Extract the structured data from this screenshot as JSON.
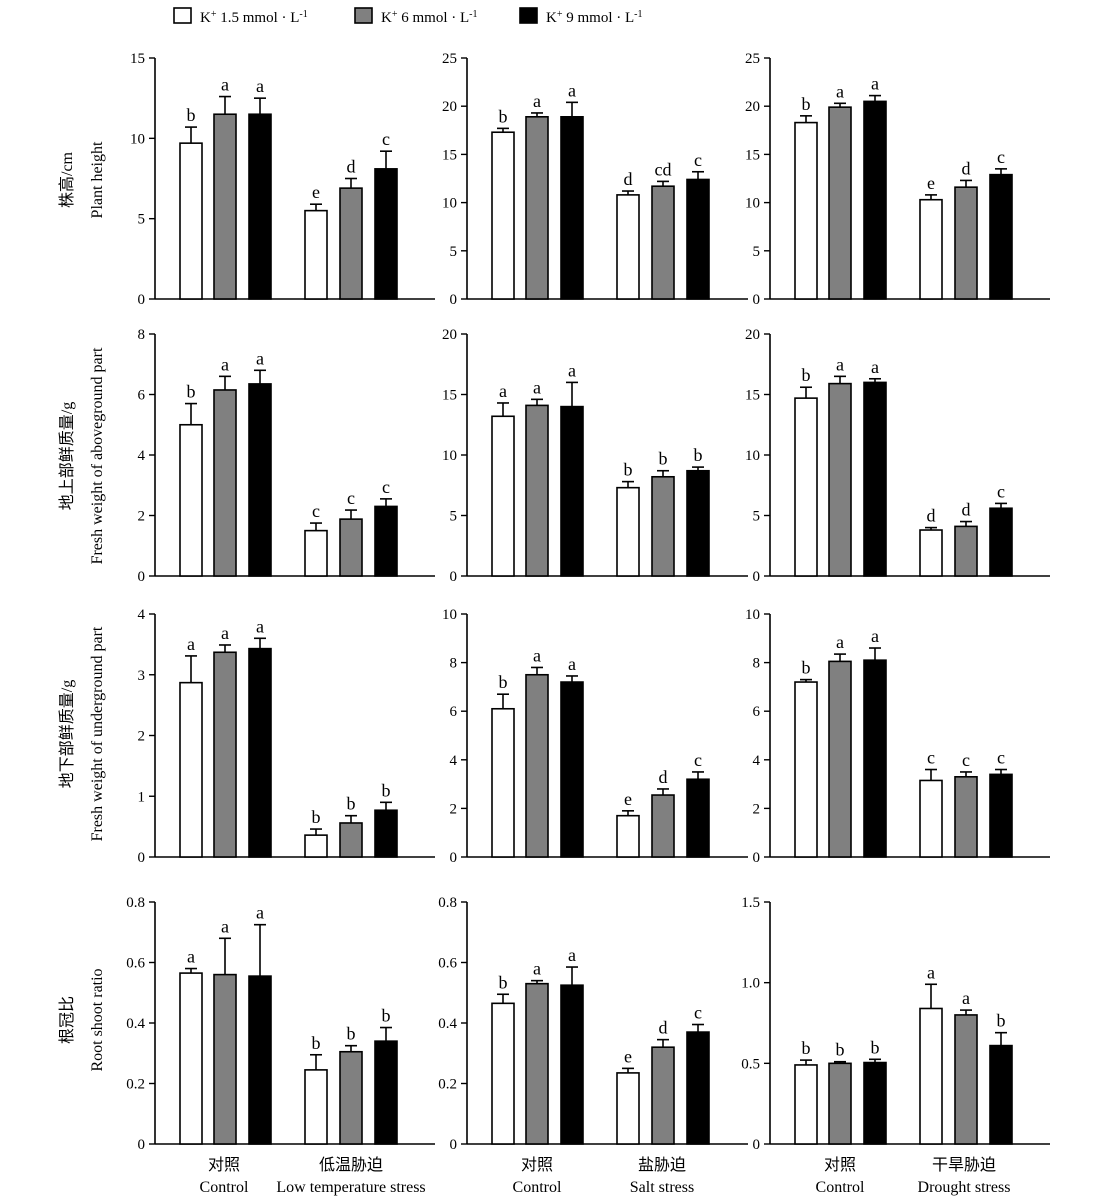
{
  "legend": {
    "entries": [
      {
        "prefix": "K",
        "sup": "+",
        "text": " 1.5 mmol · L",
        "unit_sup": "-1",
        "color": "#ffffff"
      },
      {
        "prefix": "K",
        "sup": "+",
        "text": " 6 mmol · L",
        "unit_sup": "-1",
        "color": "#808080"
      },
      {
        "prefix": "K",
        "sup": "+",
        "text": " 9 mmol · L",
        "unit_sup": "-1",
        "color": "#000000"
      }
    ]
  },
  "row_labels": [
    {
      "zh": "株高/cm",
      "en": "Plant height"
    },
    {
      "zh": "地上部鲜质量/g",
      "en": "Fresh weight of aboveground part"
    },
    {
      "zh": "地下部鲜质量/g",
      "en": "Fresh weight of underground part"
    },
    {
      "zh": "根冠比",
      "en": "Root shoot ratio"
    }
  ],
  "column_groups": [
    {
      "zh": [
        "对照",
        "低温胁迫"
      ],
      "en": [
        "Control",
        "Low temperature stress"
      ]
    },
    {
      "zh": [
        "对照",
        "盐胁迫"
      ],
      "en": [
        "Control",
        "Salt stress"
      ]
    },
    {
      "zh": [
        "对照",
        "干旱胁迫"
      ],
      "en": [
        "Control",
        "Drought stress"
      ]
    }
  ],
  "colors": {
    "k15": "#ffffff",
    "k6": "#808080",
    "k9": "#000000",
    "stroke": "#000000"
  },
  "chart_data": [
    {
      "type": "bar",
      "row": 0,
      "col": 0,
      "ylim": [
        0,
        15
      ],
      "yticks": [
        0,
        5,
        10,
        15
      ],
      "series": [
        {
          "values": [
            9.7,
            5.5
          ],
          "err": [
            1.0,
            0.4
          ],
          "letters": [
            "b",
            "e"
          ]
        },
        {
          "values": [
            11.5,
            6.9
          ],
          "err": [
            1.1,
            0.6
          ],
          "letters": [
            "a",
            "d"
          ]
        },
        {
          "values": [
            11.5,
            8.1
          ],
          "err": [
            1.0,
            1.1
          ],
          "letters": [
            "a",
            "c"
          ]
        }
      ]
    },
    {
      "type": "bar",
      "row": 0,
      "col": 1,
      "ylim": [
        0,
        25
      ],
      "yticks": [
        0,
        5,
        10,
        15,
        20,
        25
      ],
      "series": [
        {
          "values": [
            17.3,
            10.8
          ],
          "err": [
            0.4,
            0.4
          ],
          "letters": [
            "b",
            "d"
          ]
        },
        {
          "values": [
            18.9,
            11.7
          ],
          "err": [
            0.4,
            0.5
          ],
          "letters": [
            "a",
            "cd"
          ]
        },
        {
          "values": [
            18.9,
            12.4
          ],
          "err": [
            1.5,
            0.8
          ],
          "letters": [
            "a",
            "c"
          ]
        }
      ]
    },
    {
      "type": "bar",
      "row": 0,
      "col": 2,
      "ylim": [
        0,
        25
      ],
      "yticks": [
        0,
        5,
        10,
        15,
        20,
        25
      ],
      "series": [
        {
          "values": [
            18.3,
            10.3
          ],
          "err": [
            0.7,
            0.5
          ],
          "letters": [
            "b",
            "e"
          ]
        },
        {
          "values": [
            19.9,
            11.6
          ],
          "err": [
            0.4,
            0.7
          ],
          "letters": [
            "a",
            "d"
          ]
        },
        {
          "values": [
            20.5,
            12.9
          ],
          "err": [
            0.6,
            0.6
          ],
          "letters": [
            "a",
            "c"
          ]
        }
      ]
    },
    {
      "type": "bar",
      "row": 1,
      "col": 0,
      "ylim": [
        0,
        8
      ],
      "yticks": [
        0,
        2,
        4,
        6,
        8
      ],
      "series": [
        {
          "values": [
            5.0,
            1.5
          ],
          "err": [
            0.7,
            0.25
          ],
          "letters": [
            "b",
            "c"
          ]
        },
        {
          "values": [
            6.15,
            1.88
          ],
          "err": [
            0.45,
            0.3
          ],
          "letters": [
            "a",
            "c"
          ]
        },
        {
          "values": [
            6.35,
            2.3
          ],
          "err": [
            0.45,
            0.25
          ],
          "letters": [
            "a",
            "c"
          ]
        }
      ]
    },
    {
      "type": "bar",
      "row": 1,
      "col": 1,
      "ylim": [
        0,
        20
      ],
      "yticks": [
        0,
        5,
        10,
        15,
        20
      ],
      "series": [
        {
          "values": [
            13.2,
            7.3
          ],
          "err": [
            1.1,
            0.5
          ],
          "letters": [
            "a",
            "b"
          ]
        },
        {
          "values": [
            14.1,
            8.2
          ],
          "err": [
            0.5,
            0.5
          ],
          "letters": [
            "a",
            "b"
          ]
        },
        {
          "values": [
            14.0,
            8.7
          ],
          "err": [
            2.0,
            0.3
          ],
          "letters": [
            "a",
            "b"
          ]
        }
      ]
    },
    {
      "type": "bar",
      "row": 1,
      "col": 2,
      "ylim": [
        0,
        20
      ],
      "yticks": [
        0,
        5,
        10,
        15,
        20
      ],
      "series": [
        {
          "values": [
            14.7,
            3.8
          ],
          "err": [
            0.9,
            0.2
          ],
          "letters": [
            "b",
            "d"
          ]
        },
        {
          "values": [
            15.9,
            4.1
          ],
          "err": [
            0.6,
            0.4
          ],
          "letters": [
            "a",
            "d"
          ]
        },
        {
          "values": [
            16.0,
            5.6
          ],
          "err": [
            0.3,
            0.4
          ],
          "letters": [
            "a",
            "c"
          ]
        }
      ]
    },
    {
      "type": "bar",
      "row": 2,
      "col": 0,
      "ylim": [
        0,
        4
      ],
      "yticks": [
        0,
        1,
        2,
        3,
        4
      ],
      "series": [
        {
          "values": [
            2.87,
            0.36
          ],
          "err": [
            0.44,
            0.1
          ],
          "letters": [
            "a",
            "b"
          ]
        },
        {
          "values": [
            3.37,
            0.56
          ],
          "err": [
            0.12,
            0.12
          ],
          "letters": [
            "a",
            "b"
          ]
        },
        {
          "values": [
            3.43,
            0.77
          ],
          "err": [
            0.17,
            0.13
          ],
          "letters": [
            "a",
            "b"
          ]
        }
      ]
    },
    {
      "type": "bar",
      "row": 2,
      "col": 1,
      "ylim": [
        0,
        10
      ],
      "yticks": [
        0,
        2,
        4,
        6,
        8,
        10
      ],
      "series": [
        {
          "values": [
            6.1,
            1.7
          ],
          "err": [
            0.6,
            0.2
          ],
          "letters": [
            "b",
            "e"
          ]
        },
        {
          "values": [
            7.5,
            2.55
          ],
          "err": [
            0.3,
            0.25
          ],
          "letters": [
            "a",
            "d"
          ]
        },
        {
          "values": [
            7.2,
            3.2
          ],
          "err": [
            0.25,
            0.3
          ],
          "letters": [
            "a",
            "c"
          ]
        }
      ]
    },
    {
      "type": "bar",
      "row": 2,
      "col": 2,
      "ylim": [
        0,
        10
      ],
      "yticks": [
        0,
        2,
        4,
        6,
        8,
        10
      ],
      "series": [
        {
          "values": [
            7.2,
            3.15
          ],
          "err": [
            0.1,
            0.45
          ],
          "letters": [
            "b",
            "c"
          ]
        },
        {
          "values": [
            8.05,
            3.3
          ],
          "err": [
            0.3,
            0.2
          ],
          "letters": [
            "a",
            "c"
          ]
        },
        {
          "values": [
            8.1,
            3.4
          ],
          "err": [
            0.5,
            0.2
          ],
          "letters": [
            "a",
            "c"
          ]
        }
      ]
    },
    {
      "type": "bar",
      "row": 3,
      "col": 0,
      "ylim": [
        0,
        0.8
      ],
      "yticks": [
        0,
        0.2,
        0.4,
        0.6,
        0.8
      ],
      "series": [
        {
          "values": [
            0.565,
            0.245
          ],
          "err": [
            0.015,
            0.05
          ],
          "letters": [
            "a",
            "b"
          ]
        },
        {
          "values": [
            0.56,
            0.305
          ],
          "err": [
            0.12,
            0.02
          ],
          "letters": [
            "a",
            "b"
          ]
        },
        {
          "values": [
            0.555,
            0.34
          ],
          "err": [
            0.17,
            0.045
          ],
          "letters": [
            "a",
            "b"
          ]
        }
      ]
    },
    {
      "type": "bar",
      "row": 3,
      "col": 1,
      "ylim": [
        0,
        0.8
      ],
      "yticks": [
        0,
        0.2,
        0.4,
        0.6,
        0.8
      ],
      "series": [
        {
          "values": [
            0.465,
            0.235
          ],
          "err": [
            0.03,
            0.015
          ],
          "letters": [
            "b",
            "e"
          ]
        },
        {
          "values": [
            0.53,
            0.32
          ],
          "err": [
            0.01,
            0.025
          ],
          "letters": [
            "a",
            "d"
          ]
        },
        {
          "values": [
            0.525,
            0.37
          ],
          "err": [
            0.06,
            0.025
          ],
          "letters": [
            "a",
            "c"
          ]
        }
      ]
    },
    {
      "type": "bar",
      "row": 3,
      "col": 2,
      "ylim": [
        0,
        1.5
      ],
      "yticks": [
        0,
        0.5,
        1.0,
        1.5
      ],
      "series": [
        {
          "values": [
            0.49,
            0.84
          ],
          "err": [
            0.03,
            0.15
          ],
          "letters": [
            "b",
            "a"
          ]
        },
        {
          "values": [
            0.5,
            0.8
          ],
          "err": [
            0.01,
            0.03
          ],
          "letters": [
            "b",
            "a"
          ]
        },
        {
          "values": [
            0.505,
            0.61
          ],
          "err": [
            0.02,
            0.08
          ],
          "letters": [
            "b",
            "b"
          ]
        }
      ]
    }
  ]
}
